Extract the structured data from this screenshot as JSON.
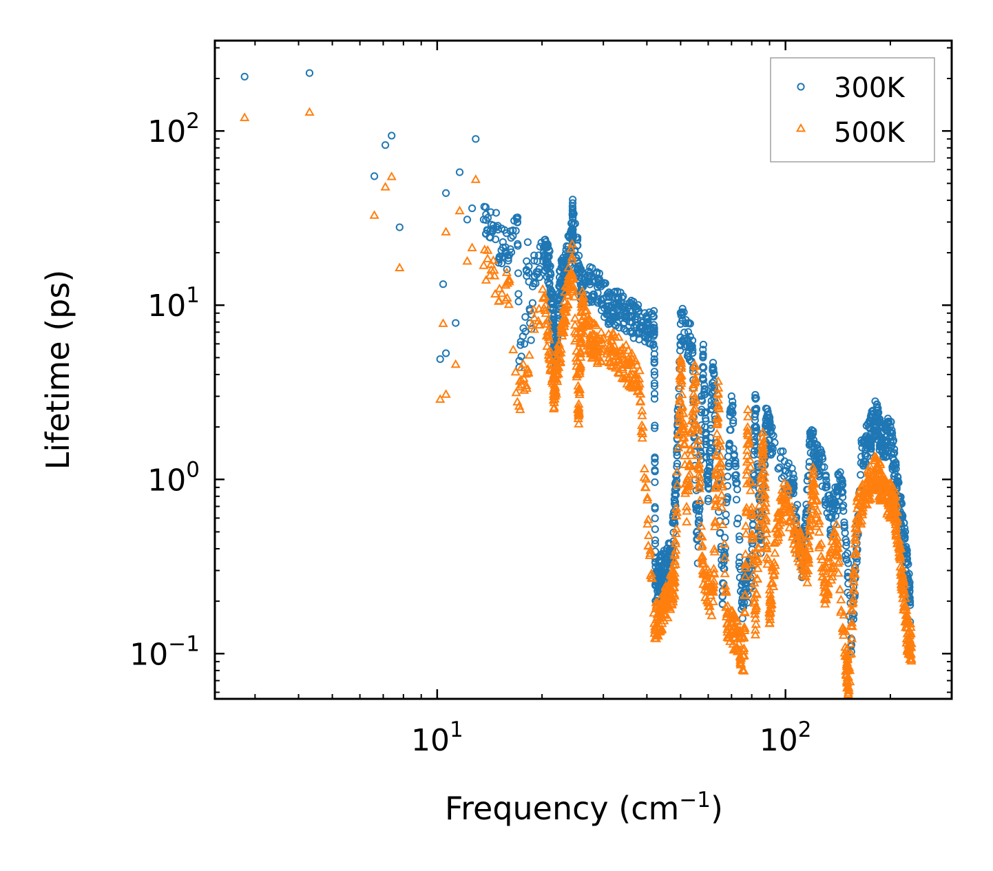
{
  "chart_data": {
    "type": "scatter",
    "xscale": "log",
    "yscale": "log",
    "xlabel": "Frequency (cm",
    "xlabel_sup": "−1",
    "xlabel_tail": ")",
    "ylabel": "Lifetime (ps)",
    "xlim": [
      2.3,
      300
    ],
    "ylim": [
      0.055,
      330
    ],
    "x_ticks": [
      {
        "value": 10,
        "base": "10",
        "exp": "1"
      },
      {
        "value": 100,
        "base": "10",
        "exp": "2"
      }
    ],
    "y_ticks": [
      {
        "value": 0.1,
        "base": "10",
        "exp": "−1"
      },
      {
        "value": 1,
        "base": "10",
        "exp": "0"
      },
      {
        "value": 10,
        "base": "10",
        "exp": "1"
      },
      {
        "value": 100,
        "base": "10",
        "exp": "2"
      }
    ],
    "legend": {
      "position": "top-right",
      "entries": [
        "300K",
        "500K"
      ]
    },
    "colors": {
      "300K": "#1f77b4",
      "500K": "#ff7f0e"
    },
    "series": [
      {
        "name": "300K",
        "marker": "circle",
        "points": [
          [
            2.8,
            205
          ],
          [
            4.3,
            215
          ],
          [
            6.6,
            55
          ],
          [
            7.1,
            83
          ],
          [
            7.4,
            94
          ],
          [
            7.8,
            28
          ],
          [
            10.2,
            4.9
          ],
          [
            10.4,
            13.2
          ],
          [
            10.6,
            5.3
          ],
          [
            10.6,
            44
          ],
          [
            11.3,
            7.9
          ],
          [
            11.6,
            58
          ],
          [
            12.2,
            31
          ],
          [
            12.6,
            36
          ],
          [
            12.9,
            90
          ],
          [
            13.6,
            31
          ],
          [
            13.9,
            27
          ],
          [
            14.3,
            29
          ],
          [
            14.8,
            28
          ],
          [
            15.1,
            19
          ],
          [
            15.6,
            27
          ],
          [
            16.0,
            18
          ],
          [
            16.5,
            25
          ],
          [
            17.0,
            30
          ],
          [
            17.2,
            4.8
          ],
          [
            17.8,
            6.0
          ],
          [
            18.2,
            23
          ],
          [
            18.6,
            6.3
          ],
          [
            19.0,
            18
          ],
          [
            19.5,
            15.5
          ],
          [
            20.2,
            20
          ],
          [
            21.0,
            16.5
          ],
          [
            21.6,
            7.0
          ],
          [
            22.0,
            5.1
          ],
          [
            22.5,
            13.5
          ],
          [
            23.2,
            15.8
          ],
          [
            24.4,
            24
          ],
          [
            24.5,
            32
          ],
          [
            26.0,
            12.5
          ],
          [
            28.5,
            13.8
          ],
          [
            31.0,
            9.8
          ],
          [
            33.0,
            9.5
          ],
          [
            36.0,
            8.6
          ],
          [
            39.0,
            7.5
          ],
          [
            42.0,
            7.4
          ],
          [
            42.3,
            0.25
          ],
          [
            43.5,
            0.28
          ],
          [
            45.0,
            0.31
          ],
          [
            47.0,
            0.36
          ],
          [
            48.5,
            0.9
          ],
          [
            50.0,
            7.8
          ],
          [
            54.0,
            5.8
          ],
          [
            56.0,
            0.33
          ],
          [
            58.0,
            5.1
          ],
          [
            60.0,
            0.75
          ],
          [
            62.0,
            4.3
          ],
          [
            66.0,
            0.23
          ],
          [
            70.0,
            3.0
          ],
          [
            75.0,
            0.2
          ],
          [
            80.0,
            0.3
          ],
          [
            82.0,
            2.9
          ],
          [
            85.0,
            0.45
          ],
          [
            88.0,
            2.1
          ],
          [
            92.0,
            1.5
          ],
          [
            105.0,
            0.95
          ],
          [
            112.0,
            0.3
          ],
          [
            118.0,
            1.6
          ],
          [
            125.0,
            1.3
          ],
          [
            135.0,
            0.6
          ],
          [
            145.0,
            1.0
          ],
          [
            155.0,
            0.12
          ],
          [
            165.0,
            1.35
          ],
          [
            175.0,
            1.8
          ],
          [
            182.0,
            2.25
          ],
          [
            190.0,
            1.6
          ],
          [
            200.0,
            1.85
          ],
          [
            208.0,
            0.95
          ],
          [
            215.0,
            0.6
          ],
          [
            222.0,
            0.35
          ],
          [
            228.0,
            0.19
          ]
        ]
      },
      {
        "name": "500K",
        "marker": "triangle",
        "points": [
          [
            2.8,
            120
          ],
          [
            4.3,
            129
          ],
          [
            6.6,
            33
          ],
          [
            7.1,
            48
          ],
          [
            7.4,
            55
          ],
          [
            7.8,
            16.5
          ],
          [
            10.2,
            2.9
          ],
          [
            10.4,
            7.9
          ],
          [
            10.6,
            3.1
          ],
          [
            10.6,
            26.5
          ],
          [
            11.3,
            4.6
          ],
          [
            11.6,
            35
          ],
          [
            12.2,
            18
          ],
          [
            12.6,
            21.5
          ],
          [
            12.9,
            53
          ],
          [
            13.6,
            17
          ],
          [
            14.3,
            16
          ],
          [
            15.1,
            12.5
          ],
          [
            16.0,
            14
          ],
          [
            17.0,
            2.8
          ],
          [
            17.5,
            3.5
          ],
          [
            18.2,
            4.3
          ],
          [
            19.0,
            8.5
          ],
          [
            20.2,
            11
          ],
          [
            21.6,
            3.1
          ],
          [
            22.0,
            4.0
          ],
          [
            23.0,
            8.0
          ],
          [
            24.4,
            19
          ],
          [
            25.5,
            2.4
          ],
          [
            26.0,
            9.8
          ],
          [
            27.5,
            6.5
          ],
          [
            29.0,
            5.8
          ],
          [
            32.0,
            5.6
          ],
          [
            35.0,
            4.6
          ],
          [
            38.0,
            3.8
          ],
          [
            42.0,
            0.15
          ],
          [
            44.0,
            0.17
          ],
          [
            46.0,
            0.21
          ],
          [
            48.0,
            0.26
          ],
          [
            50.0,
            4.5
          ],
          [
            52.0,
            0.7
          ],
          [
            55.0,
            3.8
          ],
          [
            58.0,
            0.29
          ],
          [
            62.0,
            0.2
          ],
          [
            64.0,
            3.1
          ],
          [
            68.0,
            0.15
          ],
          [
            72.0,
            0.13
          ],
          [
            76.0,
            0.098
          ],
          [
            78.0,
            2.3
          ],
          [
            82.0,
            0.16
          ],
          [
            86.0,
            1.6
          ],
          [
            90.0,
            0.18
          ],
          [
            95.0,
            0.55
          ],
          [
            100.0,
            0.8
          ],
          [
            108.0,
            0.45
          ],
          [
            115.0,
            0.29
          ],
          [
            120.0,
            0.95
          ],
          [
            130.0,
            0.24
          ],
          [
            140.0,
            0.45
          ],
          [
            150.0,
            0.085
          ],
          [
            152.0,
            0.062
          ],
          [
            160.0,
            0.6
          ],
          [
            170.0,
            0.85
          ],
          [
            180.0,
            1.12
          ],
          [
            188.0,
            0.95
          ],
          [
            198.0,
            0.75
          ],
          [
            205.0,
            0.75
          ],
          [
            212.0,
            0.45
          ],
          [
            218.0,
            0.22
          ],
          [
            225.0,
            0.12
          ],
          [
            230.0,
            0.115
          ]
        ]
      }
    ]
  }
}
